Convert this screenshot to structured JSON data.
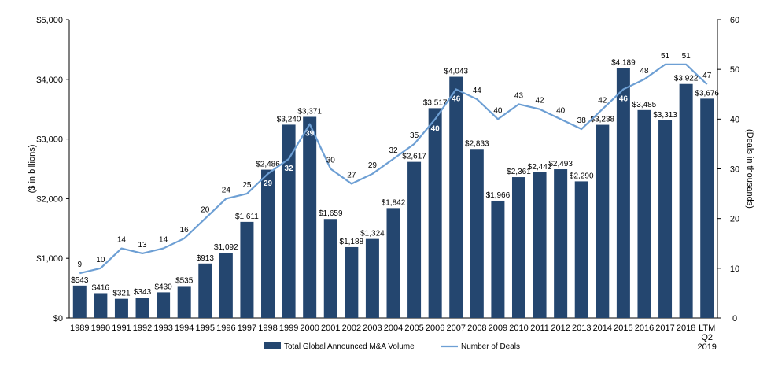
{
  "chart_data": {
    "type": "bar",
    "categories": [
      "1989",
      "1990",
      "1991",
      "1992",
      "1993",
      "1994",
      "1995",
      "1996",
      "1997",
      "1998",
      "1999",
      "2000",
      "2001",
      "2002",
      "2003",
      "2004",
      "2005",
      "2006",
      "2007",
      "2008",
      "2009",
      "2010",
      "2011",
      "2012",
      "2013",
      "2014",
      "2015",
      "2016",
      "2017",
      "2018",
      "LTM Q2 2019"
    ],
    "series": [
      {
        "name": "Total Global Announced M&A Volume",
        "type": "bar",
        "axis": "left",
        "color": "#24466f",
        "values": [
          543,
          416,
          321,
          343,
          430,
          535,
          913,
          1092,
          1611,
          2486,
          3240,
          3371,
          1659,
          1188,
          1324,
          1842,
          2617,
          3517,
          4043,
          2833,
          1966,
          2361,
          2442,
          2493,
          2290,
          3238,
          4189,
          3485,
          3313,
          3922,
          3676
        ],
        "labels": [
          "$543",
          "$416",
          "$321",
          "$343",
          "$430",
          "$535",
          "$913",
          "$1,092",
          "$1,611",
          "$2,486",
          "$3,240",
          "$3,371",
          "$1,659",
          "$1,188",
          "$1,324",
          "$1,842",
          "$2,617",
          "$3,517",
          "$4,043",
          "$2,833",
          "$1,966",
          "$2,361",
          "$2,442",
          "$2,493",
          "$2,290",
          "$3,238",
          "$4,189",
          "$3,485",
          "$3,313",
          "$3,922",
          "$3,676"
        ]
      },
      {
        "name": "Number of Deals",
        "type": "line",
        "axis": "right",
        "color": "#6d9fd4",
        "values": [
          9,
          10,
          14,
          13,
          14,
          16,
          20,
          24,
          25,
          29,
          32,
          39,
          30,
          27,
          29,
          32,
          35,
          40,
          46,
          44,
          40,
          43,
          42,
          40,
          38,
          42,
          46,
          48,
          51,
          51,
          47
        ],
        "labels": [
          "9",
          "10",
          "14",
          "13",
          "14",
          "16",
          "20",
          "24",
          "25",
          "29",
          "32",
          "39",
          "30",
          "27",
          "29",
          "32",
          "35",
          "40",
          "46",
          "44",
          "40",
          "43",
          "42",
          "40",
          "38",
          "42",
          "46",
          "48",
          "51",
          "51",
          "47"
        ],
        "inside_bar_indices": [
          9,
          10,
          11,
          17,
          18,
          26
        ]
      }
    ],
    "y_left": {
      "label": "($ in billions)",
      "ylim": [
        0,
        5000
      ],
      "ticks": [
        0,
        1000,
        2000,
        3000,
        4000,
        5000
      ],
      "tick_labels": [
        "$0",
        "$1,000",
        "$2,000",
        "$3,000",
        "$4,000",
        "$5,000"
      ]
    },
    "y_right": {
      "label": "(Deals in thousands)",
      "ylim": [
        0,
        60
      ],
      "ticks": [
        0,
        10,
        20,
        30,
        40,
        50,
        60
      ],
      "tick_labels": [
        "0",
        "10",
        "20",
        "30",
        "40",
        "50",
        "60"
      ]
    },
    "grid": false,
    "legend": {
      "position": "bottom",
      "entries": [
        "Total Global Announced M&A Volume",
        "Number of Deals"
      ]
    },
    "title": ""
  }
}
